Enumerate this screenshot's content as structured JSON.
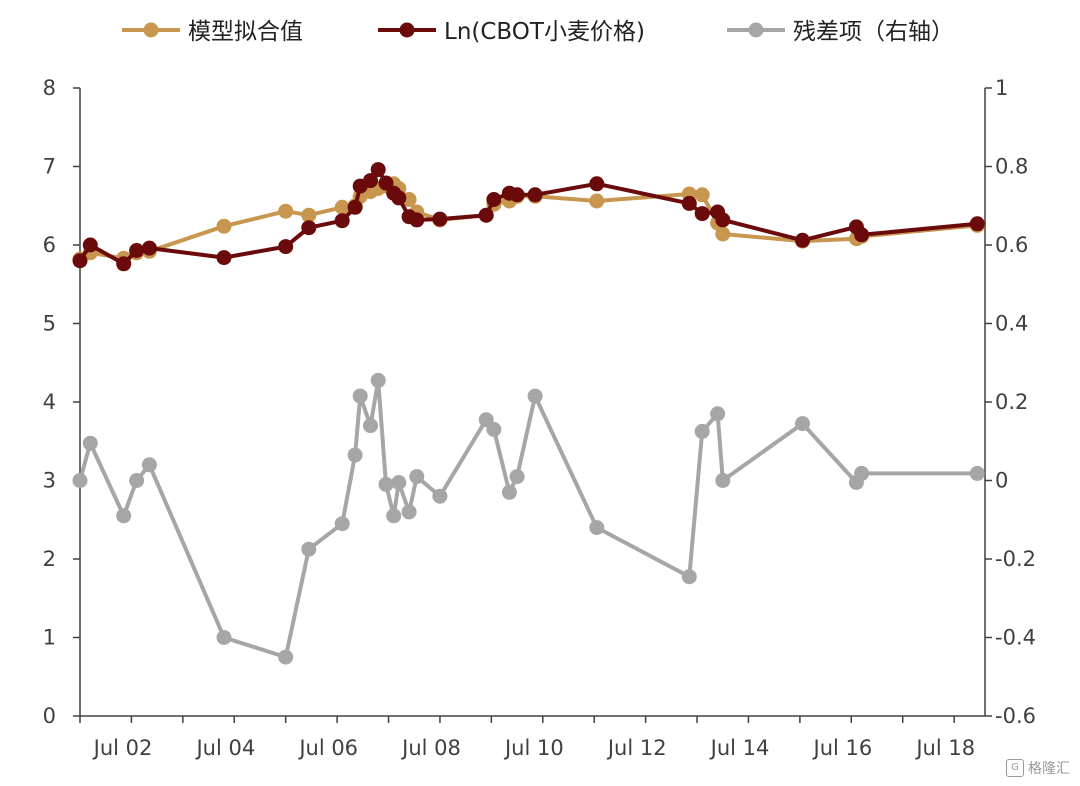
{
  "chart_data": {
    "type": "line",
    "title": "",
    "xlabel": "",
    "ylabel_left": "",
    "ylabel_right": "",
    "x_range": [
      2001.5,
      2019.1
    ],
    "ylim_left": [
      0,
      8
    ],
    "ylim_right": [
      -0.6,
      1.0
    ],
    "left_ticks": [
      "0",
      "1",
      "2",
      "3",
      "4",
      "5",
      "6",
      "7",
      "8"
    ],
    "right_ticks": [
      "-0.6",
      "-0.4",
      "-0.2",
      "0",
      "0.2",
      "0.4",
      "0.6",
      "0.8",
      "1"
    ],
    "x_ticks": [
      {
        "pos": 2001.5,
        "label": "Jul 02"
      },
      {
        "pos": 2003.5,
        "label": "Jul 04"
      },
      {
        "pos": 2005.5,
        "label": "Jul 06"
      },
      {
        "pos": 2007.5,
        "label": "Jul 08"
      },
      {
        "pos": 2009.5,
        "label": "Jul 10"
      },
      {
        "pos": 2011.5,
        "label": "Jul 12"
      },
      {
        "pos": 2013.5,
        "label": "Jul 14"
      },
      {
        "pos": 2015.5,
        "label": "Jul 16"
      },
      {
        "pos": 2017.5,
        "label": "Jul 18"
      }
    ],
    "legend_position": "top",
    "grid": false,
    "series": [
      {
        "name": "模型拟合值",
        "axis": "left",
        "color": "#C9964F",
        "x": [
          2001.5,
          2001.7,
          2002.35,
          2002.6,
          2002.85,
          2004.3,
          2005.5,
          2005.95,
          2006.6,
          2006.85,
          2006.95,
          2007.15,
          2007.3,
          2007.45,
          2007.6,
          2007.7,
          2007.9,
          2008.05,
          2008.5,
          2009.4,
          2009.55,
          2009.85,
          2010.0,
          2010.35,
          2011.55,
          2013.35,
          2013.6,
          2013.9,
          2014.0,
          2015.55,
          2016.6,
          2016.7,
          2018.95
        ],
        "y": [
          5.82,
          5.9,
          5.83,
          5.9,
          5.92,
          6.24,
          6.43,
          6.38,
          6.48,
          6.5,
          6.62,
          6.68,
          6.72,
          6.75,
          6.78,
          6.72,
          6.58,
          6.42,
          6.32,
          6.38,
          6.52,
          6.56,
          6.62,
          6.62,
          6.56,
          6.65,
          6.64,
          6.28,
          6.14,
          6.05,
          6.08,
          6.11,
          6.25
        ]
      },
      {
        "name": "Ln(CBOT小麦价格)",
        "axis": "left",
        "color": "#6B0A0A",
        "x": [
          2001.5,
          2001.7,
          2002.35,
          2002.6,
          2002.85,
          2004.3,
          2005.5,
          2005.95,
          2006.6,
          2006.85,
          2006.95,
          2007.15,
          2007.3,
          2007.45,
          2007.6,
          2007.7,
          2007.9,
          2008.05,
          2008.5,
          2009.4,
          2009.55,
          2009.85,
          2010.0,
          2010.35,
          2011.55,
          2013.35,
          2013.6,
          2013.9,
          2014.0,
          2015.55,
          2016.6,
          2016.7,
          2018.95
        ],
        "y": [
          5.8,
          6.0,
          5.76,
          5.93,
          5.96,
          5.84,
          5.98,
          6.22,
          6.31,
          6.48,
          6.75,
          6.82,
          6.96,
          6.79,
          6.66,
          6.6,
          6.36,
          6.32,
          6.33,
          6.38,
          6.58,
          6.66,
          6.64,
          6.64,
          6.78,
          6.53,
          6.4,
          6.42,
          6.32,
          6.06,
          6.23,
          6.13,
          6.27
        ]
      },
      {
        "name": "残差项（右轴）",
        "axis": "right",
        "color": "#A6A6A6",
        "x": [
          2001.5,
          2001.7,
          2002.35,
          2002.6,
          2002.85,
          2004.3,
          2005.5,
          2005.95,
          2006.6,
          2006.85,
          2006.95,
          2007.15,
          2007.3,
          2007.45,
          2007.6,
          2007.7,
          2007.9,
          2008.05,
          2008.5,
          2009.4,
          2009.55,
          2009.85,
          2010.0,
          2010.35,
          2011.55,
          2013.35,
          2013.6,
          2013.9,
          2014.0,
          2015.55,
          2016.6,
          2016.7,
          2018.95
        ],
        "y": [
          0.0,
          0.095,
          -0.09,
          0.0,
          0.04,
          -0.4,
          -0.45,
          -0.175,
          -0.11,
          0.065,
          0.215,
          0.14,
          0.255,
          -0.01,
          -0.09,
          -0.005,
          -0.08,
          0.01,
          -0.04,
          0.155,
          0.13,
          -0.03,
          0.01,
          0.215,
          -0.12,
          -0.245,
          0.125,
          0.17,
          0.0,
          0.145,
          -0.005,
          0.018,
          0.018
        ]
      }
    ]
  },
  "watermark": {
    "text": "格隆汇",
    "icon": "gelonghui-logo-icon"
  }
}
